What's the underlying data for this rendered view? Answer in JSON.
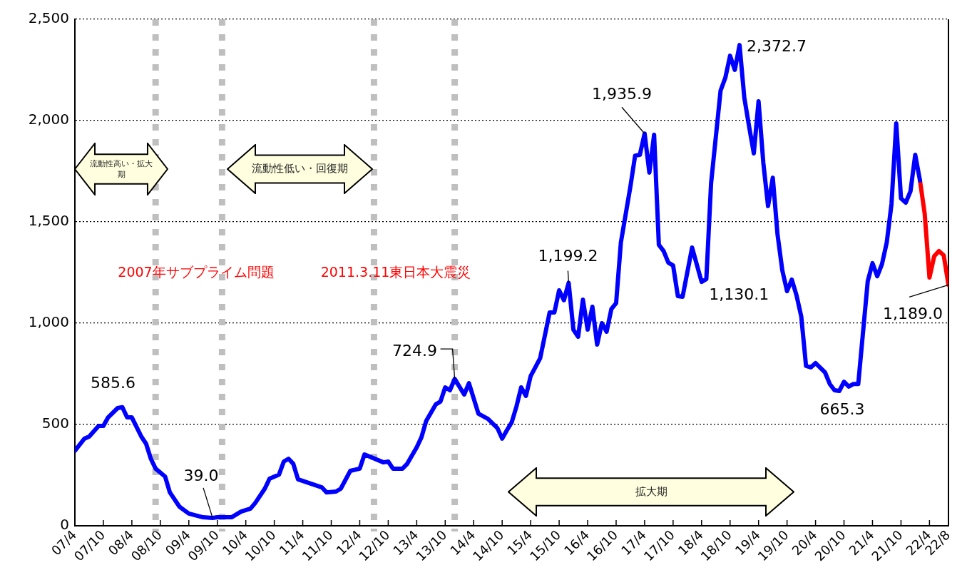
{
  "chart_data": {
    "type": "line",
    "marker": "none",
    "grid": "y",
    "xlim": [
      "2007-04",
      "2022-08"
    ],
    "xticks": [
      {
        "value": "2007-04",
        "label": "07/4"
      },
      {
        "value": "2007-10",
        "label": "07/10"
      },
      {
        "value": "2008-04",
        "label": "08/4"
      },
      {
        "value": "2008-10",
        "label": "08/10"
      },
      {
        "value": "2009-04",
        "label": "09/4"
      },
      {
        "value": "2009-10",
        "label": "09/10"
      },
      {
        "value": "2010-04",
        "label": "10/4"
      },
      {
        "value": "2010-10",
        "label": "10/10"
      },
      {
        "value": "2011-04",
        "label": "11/4"
      },
      {
        "value": "2011-10",
        "label": "11/10"
      },
      {
        "value": "2012-04",
        "label": "12/4"
      },
      {
        "value": "2012-10",
        "label": "12/10"
      },
      {
        "value": "2013-04",
        "label": "13/4"
      },
      {
        "value": "2013-10",
        "label": "13/10"
      },
      {
        "value": "2014-04",
        "label": "14/4"
      },
      {
        "value": "2014-10",
        "label": "14/10"
      },
      {
        "value": "2015-04",
        "label": "15/4"
      },
      {
        "value": "2015-10",
        "label": "15/10"
      },
      {
        "value": "2016-04",
        "label": "16/4"
      },
      {
        "value": "2016-10",
        "label": "16/10"
      },
      {
        "value": "2017-04",
        "label": "17/4"
      },
      {
        "value": "2017-10",
        "label": "17/10"
      },
      {
        "value": "2018-04",
        "label": "18/4"
      },
      {
        "value": "2018-10",
        "label": "18/10"
      },
      {
        "value": "2019-04",
        "label": "19/4"
      },
      {
        "value": "2019-10",
        "label": "19/10"
      },
      {
        "value": "2020-04",
        "label": "20/4"
      },
      {
        "value": "2020-10",
        "label": "20/10"
      },
      {
        "value": "2021-04",
        "label": "21/4"
      },
      {
        "value": "2021-10",
        "label": "21/10"
      },
      {
        "value": "2022-04",
        "label": "22/4"
      },
      {
        "value": "2022-08",
        "label": "22/8"
      }
    ],
    "ylim": [
      0,
      2500
    ],
    "yticks": [
      0,
      500,
      {
        "value": 1000,
        "label": "1,000"
      },
      {
        "value": 1500,
        "label": "1,500"
      },
      {
        "value": 2000,
        "label": "2,000"
      },
      {
        "value": 2500,
        "label": "2,500"
      }
    ],
    "series": [
      {
        "color": "#0000ff",
        "x": [
          "2007-04",
          "2007-06",
          "2007-07",
          "2007-09",
          "2007-10",
          "2007-11",
          "2008-01",
          "2008-02",
          "2008-03",
          "2008-04",
          "2008-06",
          "2008-07",
          "2008-08",
          "2008-09",
          "2008-11",
          "2008-12",
          "2009-02",
          "2009-04",
          "2009-07",
          "2009-09",
          "2009-10",
          "2010-01",
          "2010-03",
          "2010-05",
          "2010-06",
          "2010-08",
          "2010-09",
          "2010-11",
          "2010-12",
          "2011-01",
          "2011-02",
          "2011-03",
          "2011-08",
          "2011-09",
          "2011-11",
          "2011-12",
          "2012-02",
          "2012-04",
          "2012-05",
          "2012-09",
          "2012-10",
          "2012-11",
          "2013-01",
          "2013-02",
          "2013-04",
          "2013-05",
          "2013-06",
          "2013-08",
          "2013-09",
          "2013-10",
          "2013-11",
          "2013-12",
          "2014-02",
          "2014-03",
          "2014-05",
          "2014-07",
          "2014-09",
          "2014-10",
          "2014-11",
          "2014-12",
          "2015-01",
          "2015-02",
          "2015-03",
          "2015-04",
          "2015-06",
          "2015-08",
          "2015-09",
          "2015-10",
          "2015-11",
          "2015-12",
          "2016-01",
          "2016-02",
          "2016-03",
          "2016-04",
          "2016-05",
          "2016-06",
          "2016-07",
          "2016-08",
          "2016-09",
          "2016-10",
          "2016-11",
          "2017-01",
          "2017-02",
          "2017-03",
          "2017-04",
          "2017-05",
          "2017-06",
          "2017-07",
          "2017-08",
          "2017-09",
          "2017-10",
          "2017-11",
          "2017-12",
          "2018-02",
          "2018-04",
          "2018-05",
          "2018-06",
          "2018-08",
          "2018-09",
          "2018-10",
          "2018-11",
          "2018-12",
          "2019-01",
          "2019-02",
          "2019-03",
          "2019-04",
          "2019-05",
          "2019-06",
          "2019-07",
          "2019-08",
          "2019-09",
          "2019-10",
          "2019-11",
          "2019-12",
          "2020-01",
          "2020-02",
          "2020-03",
          "2020-04",
          "2020-06",
          "2020-07",
          "2020-08",
          "2020-09",
          "2020-10",
          "2020-11",
          "2020-12",
          "2021-01",
          "2021-03",
          "2021-04",
          "2021-05",
          "2021-06",
          "2021-07",
          "2021-08",
          "2021-09",
          "2021-10",
          "2021-11",
          "2021-12",
          "2022-01",
          "2022-02"
        ],
        "values": [
          370,
          430,
          440,
          493,
          493,
          535,
          581,
          585.6,
          535,
          535,
          440,
          405,
          331,
          282,
          243,
          165,
          95,
          60,
          42,
          39.0,
          42,
          42,
          70,
          85,
          113,
          183,
          232,
          253,
          317,
          331,
          306,
          229,
          190,
          165,
          169,
          183,
          271,
          282,
          352,
          313,
          317,
          282,
          282,
          306,
          387,
          437,
          518,
          599,
          613,
          683,
          669,
          724.9,
          648,
          704,
          553,
          528,
          482,
          430,
          472,
          510,
          588,
          683,
          641,
          739,
          827,
          1053,
          1053,
          1162,
          1113,
          1199.2,
          968,
          933,
          1116,
          968,
          1081,
          894,
          1000,
          958,
          1070,
          1099,
          1398,
          1673,
          1827,
          1831,
          1935.9,
          1743,
          1930,
          1387,
          1356,
          1299,
          1285,
          1134,
          1130.1,
          1373,
          1204,
          1218,
          1690,
          2148,
          2211,
          2320,
          2250,
          2372.7,
          2113,
          1972,
          1838,
          2095,
          1792,
          1578,
          1718,
          1437,
          1261,
          1158,
          1215,
          1137,
          1032,
          789,
          782,
          803,
          757,
          700,
          669,
          665.3,
          711,
          687,
          700,
          700,
          1208,
          1296,
          1232,
          1292,
          1398,
          1588,
          1986,
          1616,
          1595,
          1651,
          1831,
          1704
        ]
      },
      {
        "color": "#ff0000",
        "x": [
          "2022-02",
          "2022-03",
          "2022-04",
          "2022-05",
          "2022-06",
          "2022-07",
          "2022-08"
        ],
        "values": [
          1704,
          1539,
          1225,
          1331,
          1356,
          1335,
          1189.0
        ]
      }
    ],
    "ref_lines": [
      {
        "axis": "x",
        "value": "2008-09",
        "color": "#bfbfbf",
        "line_style": "dotted"
      },
      {
        "axis": "x",
        "value": "2009-11",
        "color": "#bfbfbf",
        "line_style": "dotted"
      },
      {
        "axis": "x",
        "value": "2012-07",
        "color": "#bfbfbf",
        "line_style": "dotted"
      },
      {
        "axis": "x",
        "value": "2013-12",
        "color": "#bfbfbf",
        "line_style": "dotted"
      }
    ],
    "annotations": [
      {
        "text": "585.6",
        "x": "2008-02",
        "y": 585.6
      },
      {
        "text": "39.0",
        "x": "2009-09",
        "y": 39.0
      },
      {
        "text": "724.9",
        "x": "2013-12",
        "y": 724.9
      },
      {
        "text": "1,199.2",
        "x": "2015-12",
        "y": 1199.2
      },
      {
        "text": "1,935.9",
        "x": "2017-04",
        "y": 1935.9
      },
      {
        "text": "1,130.1",
        "x": "2017-12",
        "y": 1130.1
      },
      {
        "text": "2,372.7",
        "x": "2018-12",
        "y": 2372.7
      },
      {
        "text": "665.3",
        "x": "2020-09",
        "y": 665.3
      },
      {
        "text": "1,189.0",
        "x": "2022-08",
        "y": 1189.0
      },
      "2007年サブプライム問題",
      "2011.3.11東日本大震災",
      "流動性高い・拡大期",
      "流動性低い・回復期",
      "拡大期"
    ]
  }
}
